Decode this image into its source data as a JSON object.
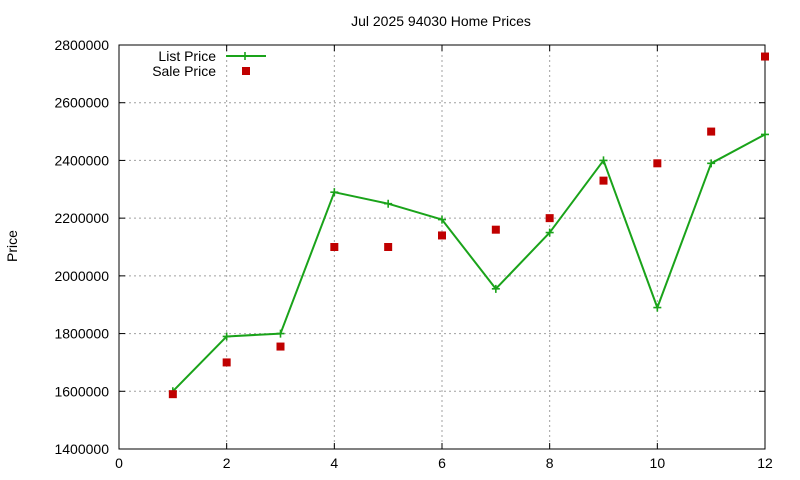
{
  "chart_data": {
    "type": "line",
    "title": "Jul 2025 94030 Home Prices",
    "xlabel": "",
    "ylabel": "Price",
    "xlim": [
      0,
      12
    ],
    "ylim": [
      1400000,
      2800000
    ],
    "x_ticks": [
      "0",
      "2",
      "4",
      "6",
      "8",
      "10",
      "12"
    ],
    "y_ticks": [
      "1400000",
      "1600000",
      "1800000",
      "2000000",
      "2200000",
      "2400000",
      "2600000",
      "2800000"
    ],
    "grid": true,
    "legend_position": "top-left",
    "series": [
      {
        "name": "List Price",
        "style": "line-with-plus-markers",
        "color": "#1aa31a",
        "x": [
          1,
          2,
          3,
          4,
          5,
          6,
          7,
          8,
          9,
          10,
          11,
          12
        ],
        "y": [
          1600000,
          1790000,
          1800000,
          2290000,
          2250000,
          2195000,
          1955000,
          2150000,
          2400000,
          1890000,
          2390000,
          2490000
        ]
      },
      {
        "name": "Sale Price",
        "style": "square-markers",
        "color": "#c00000",
        "x": [
          1,
          2,
          3,
          4,
          5,
          6,
          7,
          8,
          9,
          10,
          11,
          12
        ],
        "y": [
          1590000,
          1700000,
          1755000,
          2100000,
          2100000,
          2140000,
          2160000,
          2200000,
          2330000,
          2390000,
          2500000,
          2760000
        ]
      }
    ]
  }
}
